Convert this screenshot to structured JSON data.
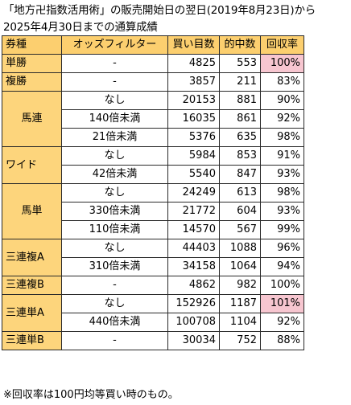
{
  "title": {
    "line1": "「地方卍指数活用術」の販売開始日の翌日(2019年8月23日)から",
    "line2": "2025年4月30日までの通算成績"
  },
  "table": {
    "headers": {
      "type": "券種",
      "filter": "オッズフィルター",
      "count": "買い目数",
      "hits": "的中数",
      "rate": "回収率"
    },
    "rows": [
      {
        "type": "単勝",
        "filter": "-",
        "count": "4825",
        "hits": "553",
        "rate": "100%",
        "highlight": true
      },
      {
        "type": "複勝",
        "filter": "-",
        "count": "3857",
        "hits": "211",
        "rate": "83%"
      },
      {
        "type": "馬連",
        "filter": "なし",
        "count": "20153",
        "hits": "881",
        "rate": "90%"
      },
      {
        "filter": "140倍未満",
        "count": "16035",
        "hits": "861",
        "rate": "92%"
      },
      {
        "filter": "21倍未満",
        "count": "5376",
        "hits": "635",
        "rate": "98%"
      },
      {
        "type": "ワイド",
        "filter": "なし",
        "count": "5984",
        "hits": "853",
        "rate": "91%"
      },
      {
        "filter": "42倍未満",
        "count": "5540",
        "hits": "847",
        "rate": "93%"
      },
      {
        "type": "馬単",
        "filter": "なし",
        "count": "24249",
        "hits": "613",
        "rate": "98%"
      },
      {
        "filter": "330倍未満",
        "count": "21772",
        "hits": "604",
        "rate": "93%"
      },
      {
        "filter": "110倍未満",
        "count": "14570",
        "hits": "567",
        "rate": "99%"
      },
      {
        "type": "三連複A",
        "filter": "なし",
        "count": "44403",
        "hits": "1088",
        "rate": "96%"
      },
      {
        "filter": "310倍未満",
        "count": "34158",
        "hits": "1064",
        "rate": "94%"
      },
      {
        "type": "三連複B",
        "filter": "-",
        "count": "4862",
        "hits": "982",
        "rate": "100%"
      },
      {
        "type": "三連単A",
        "filter": "なし",
        "count": "152926",
        "hits": "1187",
        "rate": "101%",
        "highlight": true
      },
      {
        "filter": "440倍未満",
        "count": "100708",
        "hits": "1104",
        "rate": "92%"
      },
      {
        "type": "三連単B",
        "filter": "-",
        "count": "30034",
        "hits": "752",
        "rate": "88%"
      }
    ]
  },
  "note": "※回収率は100円均等買い時のもの。",
  "colors": {
    "header_bg": "#fccf6f",
    "type_bg": "#fdd57c",
    "highlight_bg": "#f7c6d0"
  }
}
